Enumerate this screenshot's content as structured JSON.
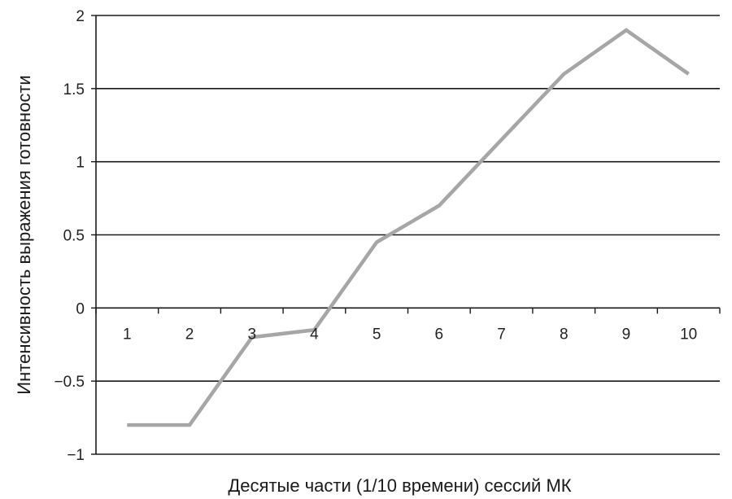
{
  "chart_data": {
    "type": "line",
    "title": "",
    "xlabel": "Десятые части (1/10 времени) сессий МК",
    "ylabel": "Интенсивность выражения готовности",
    "categories": [
      "1",
      "2",
      "3",
      "4",
      "5",
      "6",
      "7",
      "8",
      "9",
      "10"
    ],
    "y_tick_labels": [
      "2",
      "1.5",
      "1",
      "0.5",
      "0",
      "−0.5",
      "−1"
    ],
    "y_ticks": [
      2,
      1.5,
      1,
      0.5,
      0,
      -0.5,
      -1
    ],
    "ylim": [
      -1,
      2
    ],
    "grid": "horizontal",
    "legend": "none",
    "series": [
      {
        "values": [
          -0.8,
          -0.8,
          -0.2,
          -0.15,
          0.45,
          0.7,
          1.15,
          1.6,
          1.9,
          1.6
        ],
        "color": "#a6a6a6"
      }
    ]
  }
}
